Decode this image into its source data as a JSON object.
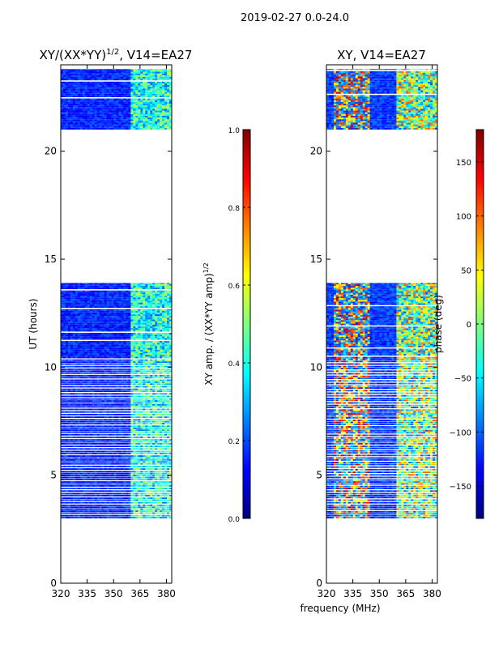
{
  "suptitle": "2019-02-27 0.0-24.0",
  "xlabel_shared": "frequency (MHz)",
  "colors": {
    "axis": "#000000",
    "jet": [
      "#00007f",
      "#0000ff",
      "#007fff",
      "#00ffff",
      "#7fff7f",
      "#ffff00",
      "#ff7f00",
      "#ff0000",
      "#7f0000"
    ]
  },
  "chart_data": [
    {
      "type": "heatmap",
      "title_main": "XY/(XX*YY)",
      "title_sup": "1/2",
      "title_tail": ", V14=EA27",
      "xlabel": "",
      "ylabel": "UT (hours)",
      "xlim": [
        320,
        383
      ],
      "ylim": [
        0,
        24
      ],
      "xticks": [
        320,
        335,
        350,
        365,
        380
      ],
      "yticks": [
        0,
        5,
        10,
        15,
        20
      ],
      "data_time_ranges": [
        [
          3.0,
          13.9
        ],
        [
          21.0,
          23.8
        ]
      ],
      "dense_block_ranges": [
        [
          10.3,
          13.9
        ],
        [
          21.0,
          23.8
        ]
      ],
      "active_freq_band": [
        360,
        383
      ],
      "colorbar": {
        "label_main": "XY amp. / (XX*YY amp)",
        "label_sup": "1/2",
        "range": [
          0.0,
          1.0
        ],
        "ticks": [
          "0.0",
          "0.2",
          "0.4",
          "0.6",
          "0.8",
          "1.0"
        ],
        "tick_values": [
          0.0,
          0.2,
          0.4,
          0.6,
          0.8,
          1.0
        ],
        "colormap": "jet"
      }
    },
    {
      "type": "heatmap",
      "title": "XY, V14=EA27",
      "xlabel": "frequency (MHz)",
      "ylabel": "",
      "xlim": [
        320,
        383
      ],
      "ylim": [
        0,
        24
      ],
      "xticks": [
        320,
        335,
        350,
        365,
        380
      ],
      "yticks": [
        0,
        5,
        10,
        15,
        20
      ],
      "data_time_ranges": [
        [
          3.0,
          13.9
        ],
        [
          21.0,
          23.8
        ]
      ],
      "dense_block_ranges": [
        [
          10.3,
          13.9
        ],
        [
          21.0,
          23.8
        ]
      ],
      "colorbar": {
        "label": "phase (deg)",
        "range": [
          -180,
          180
        ],
        "ticks": [
          "150",
          "100",
          "50",
          "0",
          "−50",
          "−100",
          "−150"
        ],
        "tick_values": [
          150,
          100,
          50,
          0,
          -50,
          -100,
          -150
        ],
        "colormap": "jet"
      }
    }
  ]
}
